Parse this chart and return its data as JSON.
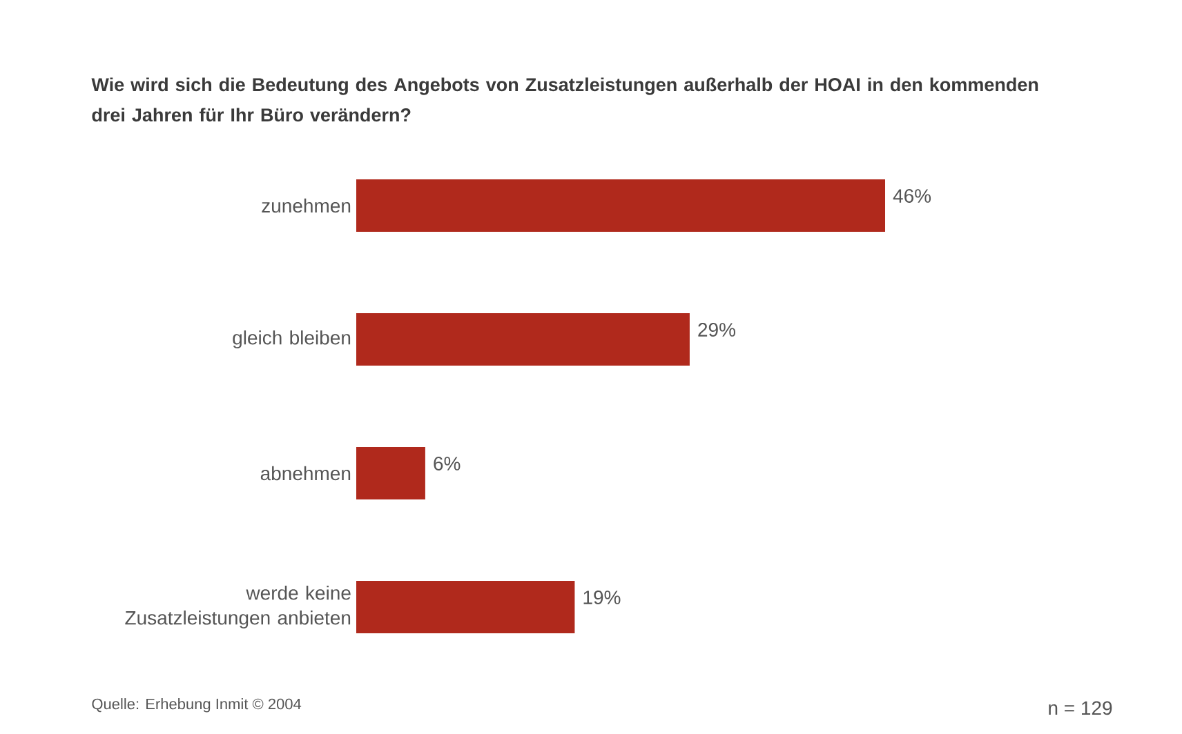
{
  "chart_data": {
    "type": "bar",
    "orientation": "horizontal",
    "title": "Wie wird sich die Bedeutung des Angebots von Zusatzleistungen außerhalb der HOAI in den kommenden drei Jahren für Ihr Büro verändern?",
    "categories": [
      "zunehmen",
      "gleich bleiben",
      "abnehmen",
      "werde keine Zusatzleistungen anbieten"
    ],
    "values": [
      46,
      29,
      6,
      19
    ],
    "value_labels": [
      "46%",
      "29%",
      "6%",
      "19%"
    ],
    "color": "#b0291c",
    "annotations": [
      "Quelle: Erhebung Inmit © 2004",
      "n = 129"
    ]
  }
}
